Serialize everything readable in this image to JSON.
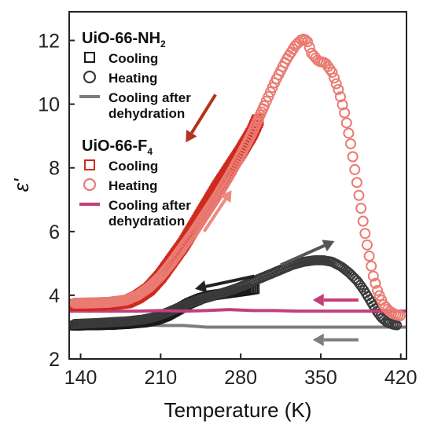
{
  "chart_data": {
    "type": "scatter",
    "title": "",
    "xlabel": "Temperature (K)",
    "ylabel": "ε'",
    "xlim": [
      130,
      425
    ],
    "ylim": [
      2,
      12.9
    ],
    "xticks": [
      140,
      210,
      280,
      350,
      420
    ],
    "yticks": [
      2,
      4,
      6,
      8,
      10,
      12
    ],
    "xtick_labels": [
      "140",
      "210",
      "280",
      "350",
      "420"
    ],
    "ytick_labels": [
      "2",
      "4",
      "6",
      "8",
      "10",
      "12"
    ],
    "legend_placement": "top-left",
    "legend_groups": [
      {
        "title": "UiO-66-NH",
        "title_sub": "2",
        "entries": [
          {
            "label": "Cooling",
            "marker": "square",
            "color": "#1a1a1a"
          },
          {
            "label": "Heating",
            "marker": "circle",
            "color": "#3a3a3a"
          },
          {
            "label": "Cooling after",
            "label2": "dehydration",
            "marker": "line",
            "color": "#7d7d7d"
          }
        ]
      },
      {
        "title": "UiO-66-F",
        "title_sub": "4",
        "entries": [
          {
            "label": "Cooling",
            "marker": "square",
            "color": "#cc2b1d"
          },
          {
            "label": "Heating",
            "marker": "circle",
            "color": "#ea7b72"
          },
          {
            "label": "Cooling after",
            "label2": "dehydration",
            "marker": "line",
            "color": "#c2407a"
          }
        ]
      }
    ],
    "series": [
      {
        "name": "UiO-66-NH2 Cooling",
        "marker": "square",
        "color": "#1a1a1a",
        "x": [
          135,
          150,
          165,
          180,
          195,
          205,
          215,
          225,
          235,
          245,
          255,
          265,
          275,
          285,
          293
        ],
        "y": [
          3.05,
          3.06,
          3.07,
          3.1,
          3.15,
          3.22,
          3.35,
          3.55,
          3.75,
          3.9,
          4.0,
          4.05,
          4.1,
          4.15,
          4.2
        ]
      },
      {
        "name": "UiO-66-NH2 Heating",
        "marker": "circle",
        "color": "#3a3a3a",
        "x": [
          135,
          150,
          165,
          180,
          195,
          205,
          215,
          225,
          235,
          245,
          255,
          265,
          275,
          285,
          295,
          305,
          315,
          325,
          335,
          345,
          352,
          360,
          368,
          375,
          382,
          388,
          393,
          398,
          403,
          408,
          413,
          418
        ],
        "y": [
          3.1,
          3.12,
          3.15,
          3.18,
          3.24,
          3.32,
          3.45,
          3.6,
          3.75,
          3.88,
          3.98,
          4.08,
          4.2,
          4.34,
          4.5,
          4.65,
          4.8,
          4.95,
          5.05,
          5.1,
          5.1,
          5.05,
          4.9,
          4.7,
          4.45,
          4.15,
          3.85,
          3.55,
          3.3,
          3.15,
          3.08,
          3.05
        ]
      },
      {
        "name": "UiO-66-NH2 Cooling after dehydration",
        "marker": "line",
        "color": "#7d7d7d",
        "x": [
          130,
          150,
          170,
          190,
          210,
          230,
          250,
          270,
          290,
          310,
          330,
          350,
          370,
          390,
          410,
          425
        ],
        "y": [
          3.1,
          3.1,
          3.08,
          3.08,
          3.05,
          3.05,
          3.0,
          3.0,
          3.0,
          3.0,
          3.0,
          3.0,
          3.0,
          3.0,
          3.0,
          3.0
        ]
      },
      {
        "name": "UiO-66-F4 Cooling",
        "marker": "square",
        "color": "#cc2b1d",
        "x": [
          135,
          150,
          165,
          180,
          190,
          200,
          210,
          220,
          230,
          240,
          250,
          260,
          270,
          280,
          290,
          295
        ],
        "y": [
          3.7,
          3.7,
          3.72,
          3.78,
          3.95,
          4.2,
          4.6,
          5.1,
          5.6,
          6.2,
          6.8,
          7.4,
          7.95,
          8.5,
          9.1,
          9.5
        ]
      },
      {
        "name": "UiO-66-F4 Heating",
        "marker": "circle",
        "color": "#ea7b72",
        "x": [
          135,
          150,
          165,
          180,
          190,
          200,
          210,
          220,
          230,
          240,
          250,
          260,
          270,
          280,
          290,
          300,
          310,
          320,
          328,
          334,
          338,
          342,
          348,
          354,
          360,
          366,
          371,
          376,
          380,
          384,
          388,
          392,
          396,
          400,
          405,
          410,
          415,
          420
        ],
        "y": [
          3.75,
          3.76,
          3.78,
          3.85,
          4.0,
          4.25,
          4.6,
          5.05,
          5.55,
          6.05,
          6.6,
          7.15,
          7.75,
          8.4,
          9.1,
          9.9,
          10.7,
          11.4,
          11.85,
          12.05,
          12.0,
          11.6,
          11.35,
          11.3,
          11.0,
          10.4,
          9.7,
          8.8,
          7.9,
          7.0,
          6.1,
          5.3,
          4.6,
          4.1,
          3.7,
          3.5,
          3.4,
          3.35
        ]
      },
      {
        "name": "UiO-66-F4 Cooling after dehydration",
        "marker": "line",
        "color": "#c2407a",
        "x": [
          130,
          150,
          170,
          190,
          210,
          230,
          250,
          270,
          290,
          310,
          330,
          350,
          370,
          390,
          410,
          425
        ],
        "y": [
          3.5,
          3.5,
          3.5,
          3.5,
          3.52,
          3.5,
          3.52,
          3.55,
          3.52,
          3.52,
          3.5,
          3.5,
          3.5,
          3.5,
          3.5,
          3.5
        ]
      }
    ],
    "arrows": [
      {
        "color": "#b5321f",
        "from": [
          258,
          10.3
        ],
        "to": [
          232,
          8.8
        ]
      },
      {
        "color": "#ee8a80",
        "from": [
          248,
          6.0
        ],
        "to": [
          272,
          7.3
        ]
      },
      {
        "color": "#222222",
        "from": [
          292,
          4.6
        ],
        "to": [
          240,
          4.2
        ]
      },
      {
        "color": "#555555",
        "from": [
          315,
          4.95
        ],
        "to": [
          362,
          5.7
        ]
      },
      {
        "color": "#c2407a",
        "from": [
          383,
          3.85
        ],
        "to": [
          343,
          3.85
        ]
      },
      {
        "color": "#7d7d7d",
        "from": [
          383,
          2.6
        ],
        "to": [
          343,
          2.6
        ]
      }
    ]
  }
}
